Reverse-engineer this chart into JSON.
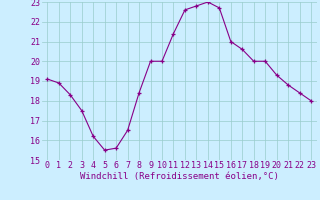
{
  "x": [
    0,
    1,
    2,
    3,
    4,
    5,
    6,
    7,
    8,
    9,
    10,
    11,
    12,
    13,
    14,
    15,
    16,
    17,
    18,
    19,
    20,
    21,
    22,
    23
  ],
  "y": [
    19.1,
    18.9,
    18.3,
    17.5,
    16.2,
    15.5,
    15.6,
    16.5,
    18.4,
    20.0,
    20.0,
    21.4,
    22.6,
    22.8,
    23.0,
    22.7,
    21.0,
    20.6,
    20.0,
    20.0,
    19.3,
    18.8,
    18.4,
    18.0
  ],
  "ylim": [
    15,
    23
  ],
  "yticks": [
    15,
    16,
    17,
    18,
    19,
    20,
    21,
    22,
    23
  ],
  "xticks": [
    0,
    1,
    2,
    3,
    4,
    5,
    6,
    7,
    8,
    9,
    10,
    11,
    12,
    13,
    14,
    15,
    16,
    17,
    18,
    19,
    20,
    21,
    22,
    23
  ],
  "xlabel": "Windchill (Refroidissement éolien,°C)",
  "line_color": "#880088",
  "marker_color": "#880088",
  "bg_color": "#cceeff",
  "grid_color": "#99cccc",
  "xlabel_color": "#880088",
  "tick_color": "#880088",
  "font_size_xlabel": 6.5,
  "font_size_ticks": 6.0
}
